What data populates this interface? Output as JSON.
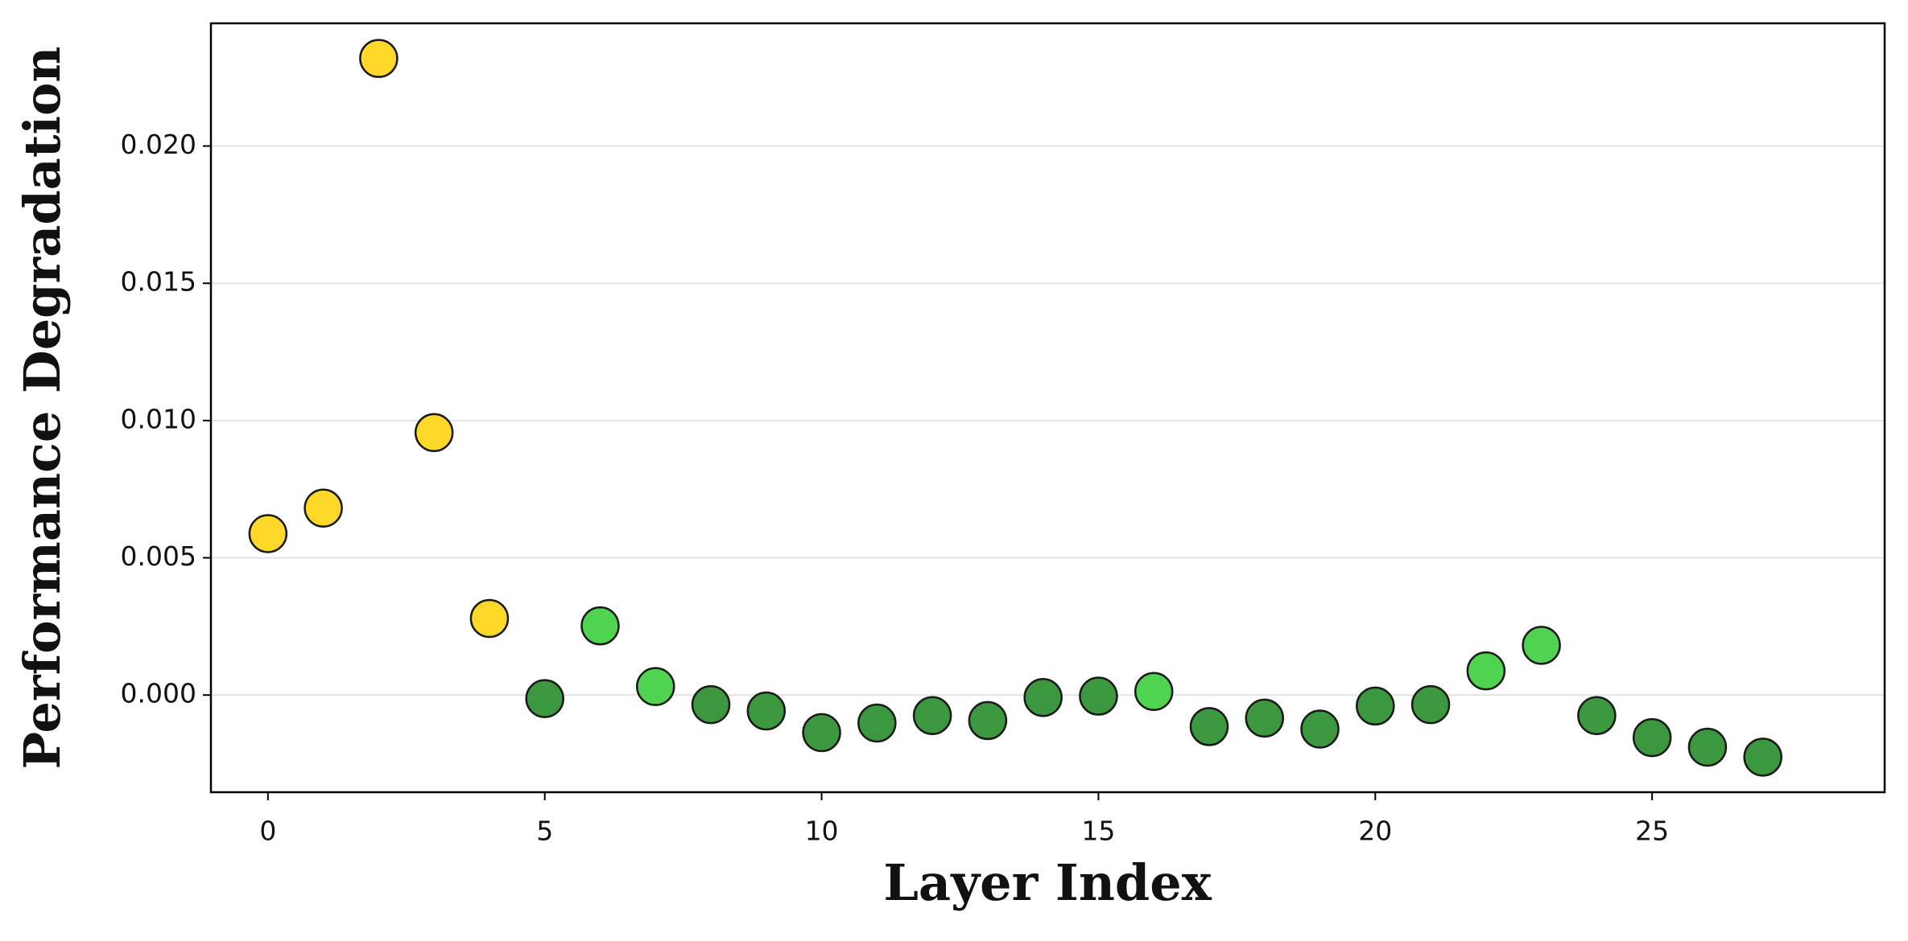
{
  "chart_data": {
    "type": "scatter",
    "x_label": "Layer Index",
    "y_label": "Performance Degradation",
    "x": [
      0,
      1,
      2,
      3,
      4,
      5,
      6,
      7,
      8,
      9,
      10,
      11,
      12,
      13,
      14,
      15,
      16,
      17,
      18,
      19,
      20,
      21,
      22,
      23,
      24,
      25,
      26,
      27
    ],
    "values": [
      0.00588,
      0.00681,
      0.02319,
      0.00956,
      0.00279,
      -0.00013,
      0.00252,
      0.00031,
      -0.00035,
      -0.00058,
      -0.00137,
      -0.00102,
      -0.00075,
      -0.00093,
      -9e-05,
      -4e-05,
      0.00013,
      -0.00115,
      -0.00084,
      -0.00124,
      -0.0004,
      -0.00035,
      0.00088,
      0.00181,
      -0.00075,
      -0.00155,
      -0.0019,
      -0.00226
    ],
    "colors": [
      "#fdd829",
      "#fdd829",
      "#fdd829",
      "#fdd829",
      "#fdd829",
      "#3c983e",
      "#4fd351",
      "#4fd351",
      "#3c983e",
      "#3c983e",
      "#3c983e",
      "#3c983e",
      "#3c983e",
      "#3c983e",
      "#3c983e",
      "#3c983e",
      "#4fd351",
      "#3c983e",
      "#3c983e",
      "#3c983e",
      "#3c983e",
      "#3c983e",
      "#4fd351",
      "#4fd351",
      "#3c983e",
      "#3c983e",
      "#3c983e",
      "#3c983e"
    ],
    "xlim": [
      -1.03,
      29.2
    ],
    "ylim": [
      -0.00354,
      0.02447
    ],
    "xticks": [
      0,
      5,
      10,
      15,
      20,
      25
    ],
    "yticks": [
      {
        "value": 0,
        "label": "0.000"
      },
      {
        "value": 0.005,
        "label": "0.005"
      },
      {
        "value": 0.01,
        "label": "0.010"
      },
      {
        "value": 0.015,
        "label": "0.015"
      },
      {
        "value": 0.02,
        "label": "0.020"
      }
    ],
    "grid": "y"
  }
}
